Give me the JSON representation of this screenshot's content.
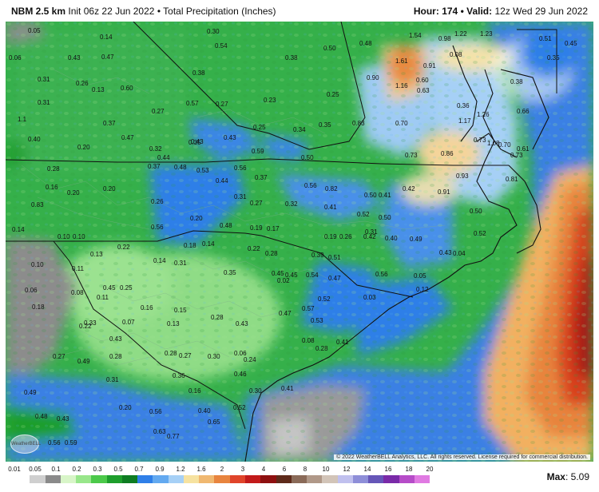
{
  "header": {
    "model": "NBM 2.5 km",
    "init": "Init 06z 22 Jun 2022",
    "separator": "•",
    "product": "Total Precipitation (Inches)",
    "hour_label": "Hour:",
    "hour_value": "174",
    "valid_label": "Valid:",
    "valid_value": "12z Wed 29 Jun 2022"
  },
  "credit": "© 2022 WeatherBELL Analytics, LLC. All rights reserved. License required for commercial distribution.",
  "logo_text": "WeatherBELL",
  "max": {
    "label": "Max",
    "value": "5.09"
  },
  "legend": {
    "labels": [
      "0.01",
      "0.05",
      "0.1",
      "0.2",
      "0.3",
      "0.5",
      "0.7",
      "0.9",
      "1.2",
      "1.6",
      "2",
      "3",
      "4",
      "6",
      "8",
      "10",
      "12",
      "14",
      "16",
      "18",
      "20"
    ],
    "colors": [
      "#ffffff",
      "#cfcfcf",
      "#8a8a8a",
      "#d8f5c8",
      "#98e68a",
      "#4cc94a",
      "#1e9e2c",
      "#0e7c22",
      "#2f7fe8",
      "#63a9f0",
      "#a6d0f6",
      "#f6e2a0",
      "#f0b870",
      "#e8843e",
      "#e0442a",
      "#c21a1a",
      "#8e1010",
      "#5e2a1a",
      "#8a6a58",
      "#b09888",
      "#d2c4b8",
      "#c0c0ee",
      "#8e8ed8",
      "#6656b8",
      "#7a2aa8",
      "#b64cc8",
      "#e07ae2"
    ]
  },
  "map_values": [
    "0.05",
    "0.14",
    "0.30",
    "0.54",
    "0.38",
    "0.50",
    "0.48",
    "1.54",
    "0.98",
    "1.22",
    "1.23",
    "0.51",
    "0.45",
    "0.47",
    "1.61",
    "0.91",
    "0.06",
    "0.43",
    "0.08",
    "0.35",
    "0.31",
    "0.26",
    "0.38",
    "0.90",
    "1.16",
    "0.60",
    "0.63",
    "0.38",
    "0.13",
    "0.60",
    "0.31",
    "0.57",
    "0.23",
    "0.25",
    "0.36",
    "1.1",
    "0.37",
    "0.27",
    "0.27",
    "0.83",
    "0.70",
    "1.17",
    "1.26",
    "0.66",
    "0.40",
    "0.47",
    "0.32",
    "0.35",
    "0.43",
    "0.25",
    "0.34",
    "0.35",
    "0.73",
    "1.08",
    "0.70",
    "0.61",
    "0.20",
    "0.37",
    "0.43",
    "0.59",
    "0.50",
    "0.73",
    "0.86",
    "0.73",
    "0.28",
    "0.44",
    "0.48",
    "0.53",
    "0.56",
    "0.37",
    "0.56",
    "0.82",
    "0.50",
    "0.41",
    "0.42",
    "0.91",
    "0.93",
    "0.81",
    "0.16",
    "0.20",
    "0.20",
    "0.26",
    "0.44",
    "0.31",
    "0.27",
    "0.32",
    "0.41",
    "0.52",
    "0.50",
    "0.50",
    "0.83",
    "0.20",
    "0.56",
    "0.48",
    "0.19",
    "0.17",
    "0.19",
    "0.26",
    "0.31",
    "0.42",
    "0.40",
    "0.49",
    "0.52",
    "0.14",
    "0.10",
    "0.10",
    "0.22",
    "0.18",
    "0.14",
    "0.22",
    "0.28",
    "0.39",
    "0.51",
    "0.43",
    "0.04",
    "0.13",
    "0.14",
    "0.31",
    "0.35",
    "0.45",
    "0.45",
    "0.54",
    "0.47",
    "0.56",
    "0.05",
    "0.10",
    "0.11",
    "0.45",
    "0.02",
    "0.06",
    "0.08",
    "0.11",
    "0.25",
    "0.15",
    "0.16",
    "0.28",
    "0.43",
    "0.47",
    "0.57",
    "0.53",
    "0.52",
    "0.03",
    "0.12",
    "0.18",
    "0.07",
    "0.13",
    "0.22",
    "0.33",
    "0.43",
    "0.08",
    "0.41",
    "0.28",
    "0.28",
    "0.28",
    "0.27",
    "0.06",
    "0.24",
    "0.30",
    "0.27",
    "0.49",
    "0.36",
    "0.46",
    "0.31",
    "0.16",
    "0.49",
    "0.41",
    "0.30",
    "0.20",
    "0.56",
    "0.52",
    "0.40",
    "0.48",
    "0.43",
    "0.65",
    "0.63",
    "0.77",
    "0.56",
    "0.59"
  ]
}
